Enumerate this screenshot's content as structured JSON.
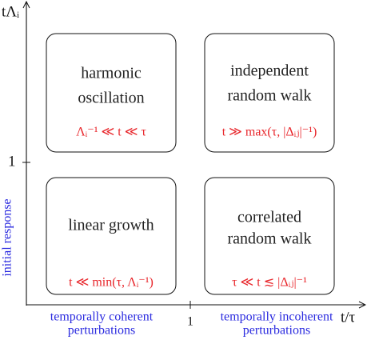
{
  "axes": {
    "y_label": "tΛᵢ",
    "x_label": "t/τ",
    "y_tick": "1",
    "x_tick": "1"
  },
  "side_label": "initial response",
  "bottom_labels": [
    [
      "temporally coherent",
      "perturbations"
    ],
    [
      "temporally incoherent",
      "perturbations"
    ]
  ],
  "boxes": [
    {
      "lines": [
        "harmonic",
        "oscillation"
      ],
      "condition": "Λᵢ⁻¹ ≪ t ≪ τ"
    },
    {
      "lines": [
        "independent",
        "random walk"
      ],
      "condition": "t ≫ max(τ, |Δᵢⱼ|⁻¹)"
    },
    {
      "lines": [
        "linear growth"
      ],
      "condition": "t ≪ min(τ, Λᵢ⁻¹)"
    },
    {
      "lines": [
        "correlated",
        "random walk"
      ],
      "condition": "τ ≪ t ≲ |Δᵢⱼ|⁻¹"
    }
  ]
}
